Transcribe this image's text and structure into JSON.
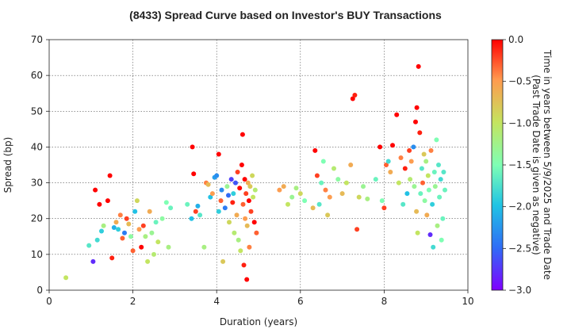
{
  "chart_data": {
    "type": "scatter",
    "title": "(8433)   Spread Curve based on Investor's BUY Transactions",
    "xlabel": "Duration (years)",
    "ylabel": "Spread (bp)",
    "xlim": [
      0,
      10
    ],
    "ylim": [
      0,
      70
    ],
    "x_ticks": [
      "0",
      "2",
      "4",
      "6",
      "8",
      "10"
    ],
    "y_ticks": [
      "0",
      "10",
      "20",
      "30",
      "40",
      "50",
      "60",
      "70"
    ],
    "grid": true,
    "colorbar": {
      "label_line1": "Time in years between 5/9/2025 and Trade Date",
      "label_line2": "(Past Trade Date is given as negative)",
      "range": [
        -3.0,
        0.0
      ],
      "ticks": [
        "0.0",
        "−0.5",
        "−1.0",
        "−1.5",
        "−2.0",
        "−2.5",
        "−3.0"
      ],
      "colormap": "rainbow"
    },
    "points": [
      [
        0.4,
        3.5,
        -1.0
      ],
      [
        0.95,
        12.5,
        -1.7
      ],
      [
        1.05,
        8,
        -2.8
      ],
      [
        1.1,
        28,
        0
      ],
      [
        1.15,
        14,
        -1.8
      ],
      [
        1.2,
        24,
        0
      ],
      [
        1.25,
        16.5,
        -1.9
      ],
      [
        1.3,
        18,
        -1.2
      ],
      [
        1.4,
        25,
        0
      ],
      [
        1.45,
        32,
        0
      ],
      [
        1.5,
        9,
        -0.1
      ],
      [
        1.55,
        17.5,
        -2.1
      ],
      [
        1.6,
        19,
        -0.6
      ],
      [
        1.65,
        17,
        -1.9
      ],
      [
        1.7,
        21,
        -0.4
      ],
      [
        1.75,
        14.5,
        -0.3
      ],
      [
        1.8,
        16,
        -2.4
      ],
      [
        1.85,
        20,
        -0.2
      ],
      [
        1.9,
        18.5,
        -0.7
      ],
      [
        1.95,
        15,
        -1.4
      ],
      [
        2.0,
        11,
        -0.3
      ],
      [
        2.05,
        22,
        -2.0
      ],
      [
        2.1,
        25,
        -0.9
      ],
      [
        2.15,
        17,
        -0.5
      ],
      [
        2.2,
        12,
        0
      ],
      [
        2.25,
        18,
        -0.2
      ],
      [
        2.3,
        15,
        -1.2
      ],
      [
        2.35,
        8,
        -1.0
      ],
      [
        2.4,
        22,
        -0.6
      ],
      [
        2.45,
        16,
        -1.3
      ],
      [
        2.5,
        10,
        -1.1
      ],
      [
        2.55,
        19,
        -1.6
      ],
      [
        2.6,
        13.5,
        -1.0
      ],
      [
        2.7,
        20,
        -1.4
      ],
      [
        2.8,
        24.5,
        -1.5
      ],
      [
        2.85,
        12,
        -1.2
      ],
      [
        2.9,
        23,
        -1.6
      ],
      [
        3.3,
        24,
        -1.6
      ],
      [
        3.4,
        20,
        -2.0
      ],
      [
        3.42,
        40,
        0
      ],
      [
        3.45,
        32.5,
        0
      ],
      [
        3.5,
        22,
        -0.2
      ],
      [
        3.55,
        23.5,
        -2.1
      ],
      [
        3.6,
        21,
        -1.7
      ],
      [
        3.7,
        12,
        -1.2
      ],
      [
        3.75,
        30,
        -0.4
      ],
      [
        3.8,
        29.5,
        -0.7
      ],
      [
        3.85,
        26,
        -2.0
      ],
      [
        3.9,
        27,
        -0.5
      ],
      [
        3.95,
        31.5,
        -2.2
      ],
      [
        4.0,
        32,
        -2.3
      ],
      [
        4.05,
        38,
        0
      ],
      [
        4.05,
        22,
        -1.9
      ],
      [
        4.1,
        25,
        -0.3
      ],
      [
        4.12,
        28,
        -2.3
      ],
      [
        4.15,
        8,
        -0.8
      ],
      [
        4.2,
        23,
        -2.4
      ],
      [
        4.25,
        29,
        -1.3
      ],
      [
        4.28,
        26.5,
        -2.5
      ],
      [
        4.3,
        19,
        -0.9
      ],
      [
        4.35,
        31,
        -2.7
      ],
      [
        4.38,
        24.5,
        -0.1
      ],
      [
        4.4,
        27,
        -1.9
      ],
      [
        4.42,
        16,
        -1.1
      ],
      [
        4.45,
        30,
        -2.6
      ],
      [
        4.48,
        21,
        -0.6
      ],
      [
        4.5,
        33,
        -0.2
      ],
      [
        4.52,
        14,
        -1.2
      ],
      [
        4.55,
        28.5,
        0
      ],
      [
        4.57,
        11,
        -1.0
      ],
      [
        4.6,
        35,
        0
      ],
      [
        4.62,
        43.5,
        0
      ],
      [
        4.63,
        24,
        -0.3
      ],
      [
        4.65,
        7,
        -0.1
      ],
      [
        4.67,
        31,
        0
      ],
      [
        4.68,
        20,
        -0.5
      ],
      [
        4.7,
        27,
        -0.2
      ],
      [
        4.72,
        3,
        0
      ],
      [
        4.73,
        18,
        -0.7
      ],
      [
        4.75,
        30,
        -0.6
      ],
      [
        4.77,
        25,
        0
      ],
      [
        4.78,
        12,
        -0.4
      ],
      [
        4.8,
        29,
        -0.8
      ],
      [
        4.82,
        22,
        -0.2
      ],
      [
        4.85,
        32,
        -0.9
      ],
      [
        4.87,
        26,
        -1.0
      ],
      [
        4.9,
        19,
        0
      ],
      [
        4.92,
        28,
        -1.1
      ],
      [
        4.95,
        16,
        -0.3
      ],
      [
        5.5,
        28,
        -0.5
      ],
      [
        5.6,
        29,
        -0.6
      ],
      [
        5.7,
        24,
        -1.0
      ],
      [
        5.8,
        26,
        -1.3
      ],
      [
        5.9,
        28.5,
        -1.2
      ],
      [
        6.0,
        27,
        -0.9
      ],
      [
        6.1,
        25,
        -1.5
      ],
      [
        6.3,
        23,
        -0.7
      ],
      [
        6.35,
        39,
        0
      ],
      [
        6.4,
        32,
        -0.2
      ],
      [
        6.45,
        24,
        -1.7
      ],
      [
        6.5,
        30,
        -1.6
      ],
      [
        6.55,
        36,
        -1.5
      ],
      [
        6.6,
        28,
        -0.4
      ],
      [
        6.65,
        21,
        -0.8
      ],
      [
        6.7,
        26,
        -0.5
      ],
      [
        6.8,
        34,
        -1.1
      ],
      [
        6.9,
        31,
        -1.4
      ],
      [
        7.0,
        27,
        -0.7
      ],
      [
        7.1,
        30,
        -1.0
      ],
      [
        7.2,
        35,
        -0.6
      ],
      [
        7.25,
        53.5,
        0
      ],
      [
        7.3,
        54.5,
        -0.1
      ],
      [
        7.35,
        17,
        -0.2
      ],
      [
        7.4,
        26,
        -0.9
      ],
      [
        7.5,
        29,
        -1.3
      ],
      [
        7.6,
        25.5,
        -1.2
      ],
      [
        7.8,
        31,
        -1.6
      ],
      [
        7.9,
        40,
        0
      ],
      [
        7.95,
        25,
        -1.5
      ],
      [
        8.0,
        23,
        -0.2
      ],
      [
        8.05,
        35,
        -0.3
      ],
      [
        8.1,
        36,
        -1.8
      ],
      [
        8.15,
        33,
        -0.6
      ],
      [
        8.2,
        40.5,
        0
      ],
      [
        8.3,
        49,
        0
      ],
      [
        8.35,
        30,
        -1.0
      ],
      [
        8.4,
        37,
        -0.4
      ],
      [
        8.45,
        24,
        -1.7
      ],
      [
        8.5,
        34,
        -0.1
      ],
      [
        8.55,
        27,
        -2.0
      ],
      [
        8.6,
        39,
        -0.2
      ],
      [
        8.62,
        31,
        -1.1
      ],
      [
        8.65,
        36,
        -0.5
      ],
      [
        8.7,
        40,
        -2.3
      ],
      [
        8.72,
        29,
        -1.3
      ],
      [
        8.75,
        47,
        0
      ],
      [
        8.77,
        22,
        -0.7
      ],
      [
        8.78,
        51,
        0
      ],
      [
        8.8,
        16,
        -1.0
      ],
      [
        8.82,
        62.5,
        0
      ],
      [
        8.85,
        44,
        -0.1
      ],
      [
        8.87,
        27,
        -1.6
      ],
      [
        8.9,
        34,
        -1.7
      ],
      [
        8.92,
        30,
        -0.3
      ],
      [
        8.95,
        38,
        -0.8
      ],
      [
        8.97,
        25,
        -1.4
      ],
      [
        9.0,
        36,
        -1.2
      ],
      [
        9.02,
        21,
        -0.6
      ],
      [
        9.05,
        32,
        -1.0
      ],
      [
        9.07,
        28,
        -1.5
      ],
      [
        9.1,
        15.5,
        -2.8
      ],
      [
        9.12,
        39,
        -0.4
      ],
      [
        9.15,
        24,
        -1.9
      ],
      [
        9.17,
        12,
        -1.8
      ],
      [
        9.2,
        33,
        -1.6
      ],
      [
        9.22,
        29,
        -1.3
      ],
      [
        9.25,
        42,
        -1.5
      ],
      [
        9.27,
        18,
        -1.2
      ],
      [
        9.3,
        35,
        -1.7
      ],
      [
        9.32,
        26,
        -1.6
      ],
      [
        9.35,
        31,
        -1.8
      ],
      [
        9.37,
        14,
        -1.5
      ],
      [
        9.4,
        20,
        -1.6
      ],
      [
        9.42,
        33,
        -1.7
      ],
      [
        9.45,
        28,
        -1.6
      ]
    ]
  }
}
